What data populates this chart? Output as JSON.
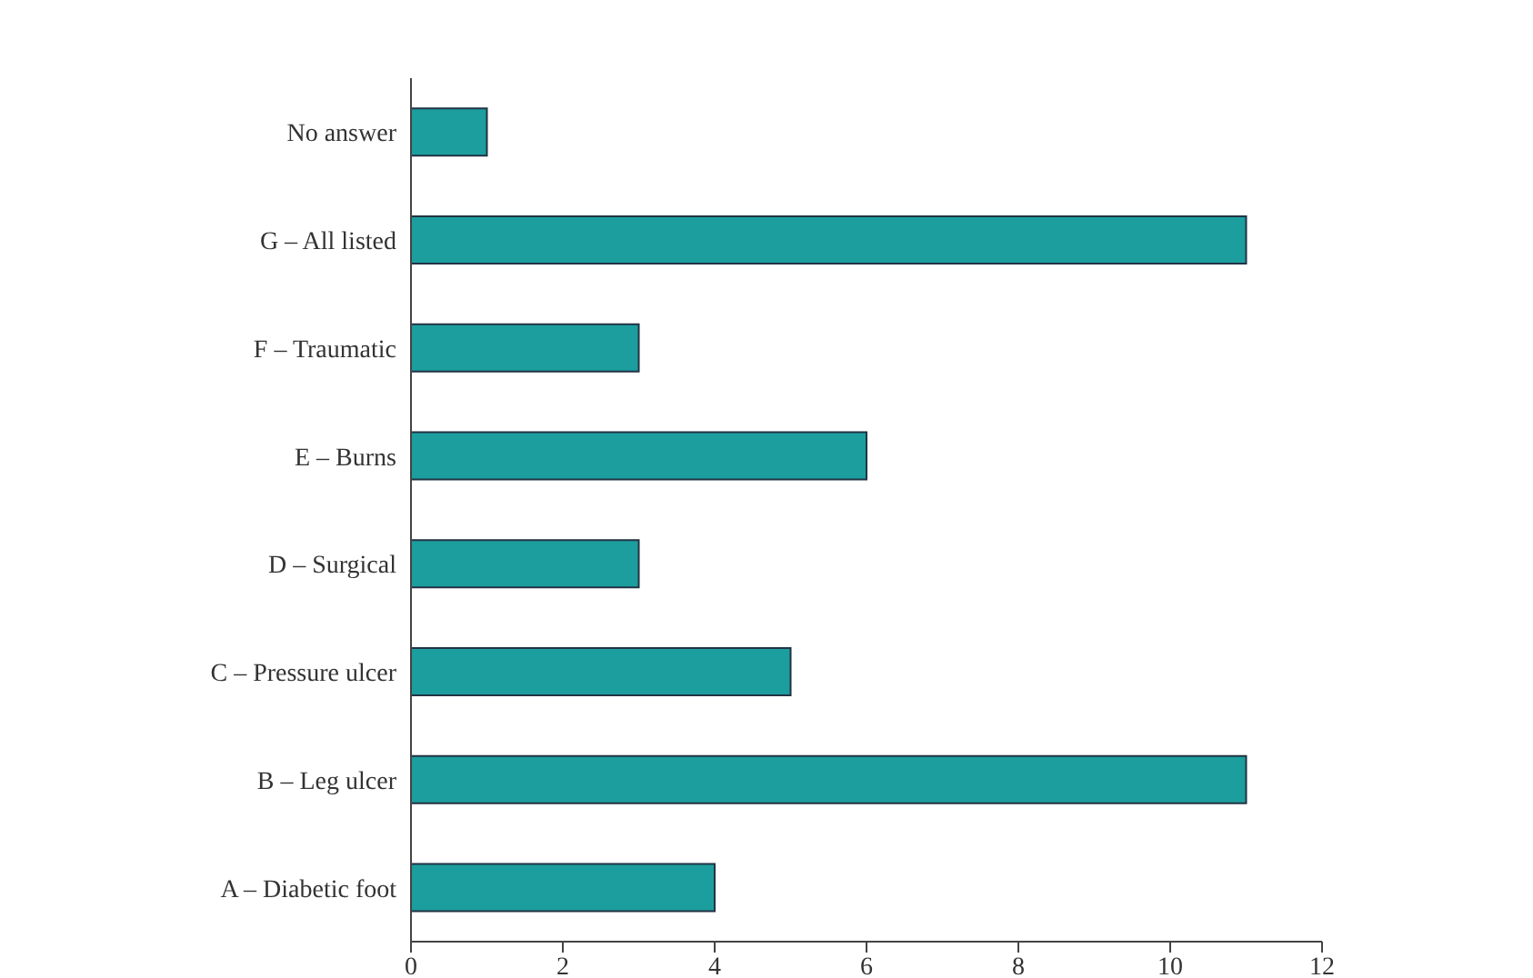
{
  "chart_data": {
    "type": "bar",
    "orientation": "horizontal",
    "categories": [
      "No answer",
      "G – All listed",
      "F – Traumatic",
      "E – Burns",
      "D – Surgical",
      "C – Pressure ulcer",
      "B – Leg ulcer",
      "A – Diabetic foot"
    ],
    "values": [
      1,
      11,
      3,
      6,
      3,
      5,
      11,
      4
    ],
    "color": "#1c9e9e",
    "xlim": [
      0,
      12
    ],
    "xticks": [
      0,
      2,
      4,
      6,
      8,
      10,
      12
    ],
    "grid": false,
    "legend": false
  }
}
